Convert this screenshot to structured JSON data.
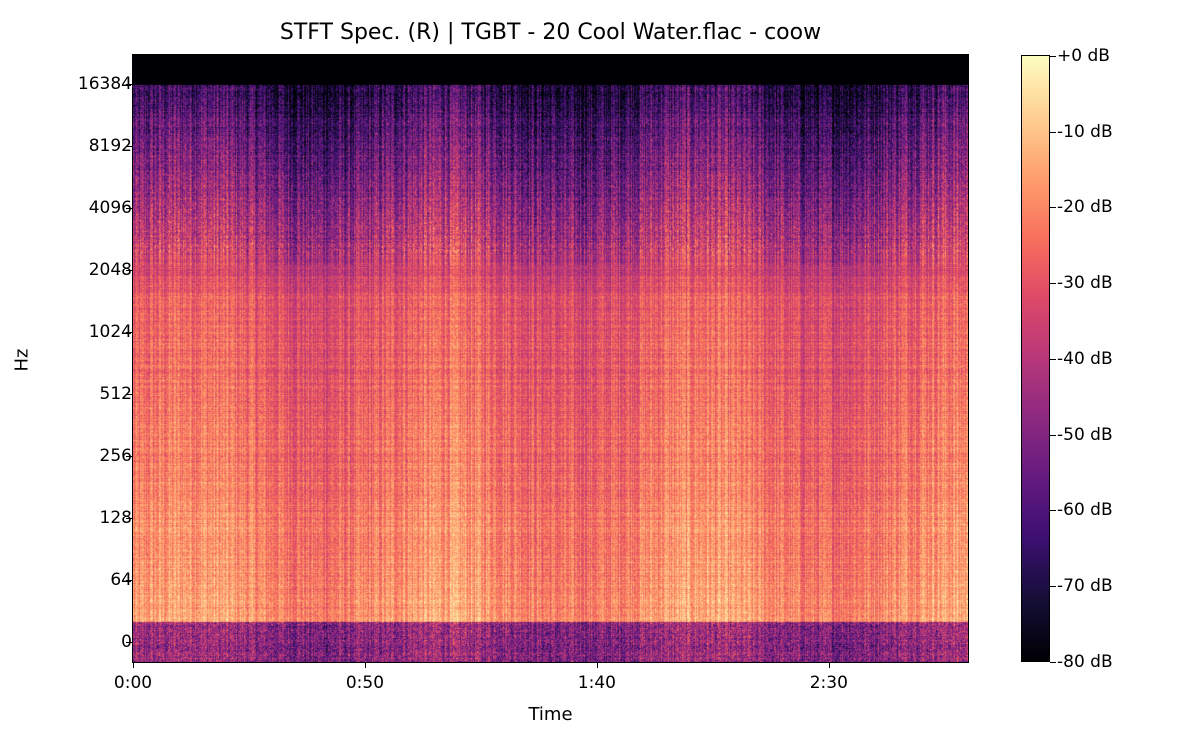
{
  "chart_data": {
    "type": "heatmap",
    "title": "STFT Spec. (R) | TGBT - 20 Cool Water.flac - coow",
    "xlabel": "Time",
    "ylabel": "Hz",
    "x_ticks": [
      {
        "label": "0:00",
        "seconds": 0
      },
      {
        "label": "0:50",
        "seconds": 50
      },
      {
        "label": "1:40",
        "seconds": 100
      },
      {
        "label": "2:30",
        "seconds": 150
      }
    ],
    "xlim_seconds": [
      0,
      180
    ],
    "y_scale": "symlog",
    "y_ticks": [
      "0",
      "64",
      "128",
      "256",
      "512",
      "1024",
      "2048",
      "4096",
      "8192",
      "16384"
    ],
    "colormap": "magma",
    "colorbar": {
      "ticks": [
        "+0 dB",
        "-10 dB",
        "-20 dB",
        "-30 dB",
        "-40 dB",
        "-50 dB",
        "-60 dB",
        "-70 dB",
        "-80 dB"
      ],
      "range_db": [
        -80,
        0
      ]
    },
    "colormap_stops": [
      "#000004",
      "#140e36",
      "#3b0f70",
      "#641a80",
      "#8c2981",
      "#b73779",
      "#de4968",
      "#f7705c",
      "#fe9f6d",
      "#fecf92",
      "#fcfdbf"
    ]
  }
}
